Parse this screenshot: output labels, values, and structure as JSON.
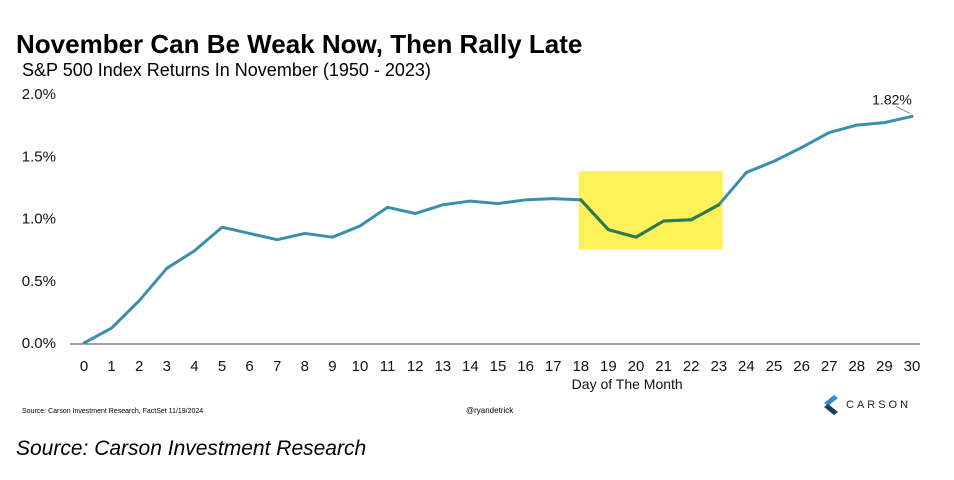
{
  "header": {
    "title": "November Can Be Weak Now, Then Rally Late",
    "subtitle": "S&P 500 Index Returns In November (1950 - 2023)"
  },
  "footer": {
    "source_small": "Source: Carson Investment Research, FactSet 11/19/2024",
    "handle": "@ryandetrick",
    "logo_text": "CARSON",
    "source_caption": "Source: Carson Investment Research"
  },
  "colors": {
    "line": "#3a8fad",
    "highlight_box": "#fef15a",
    "highlight_line": "#2e7a4a",
    "axis": "#444444",
    "logo_dark": "#1b3a6b",
    "logo_light": "#2a8fd6"
  },
  "chart_data": {
    "type": "line",
    "title": "November Can Be Weak Now, Then Rally Late",
    "subtitle": "S&P 500 Index Returns In November (1950 - 2023)",
    "xlabel": "Day of The Month",
    "ylabel": "",
    "x": [
      0,
      1,
      2,
      3,
      4,
      5,
      6,
      7,
      8,
      9,
      10,
      11,
      12,
      13,
      14,
      15,
      16,
      17,
      18,
      19,
      20,
      21,
      22,
      23,
      24,
      25,
      26,
      27,
      28,
      29,
      30
    ],
    "series": [
      {
        "values": [
          0.0,
          0.12,
          0.34,
          0.6,
          0.74,
          0.93,
          0.88,
          0.83,
          0.88,
          0.85,
          0.94,
          1.09,
          1.04,
          1.11,
          1.14,
          1.12,
          1.15,
          1.16,
          1.15,
          0.91,
          0.85,
          0.98,
          0.99,
          1.11,
          1.37,
          1.46,
          1.57,
          1.69,
          1.75,
          1.77,
          1.82
        ]
      }
    ],
    "ylim": [
      0,
      2.0
    ],
    "y_ticks": [
      "0.0%",
      "0.5%",
      "1.0%",
      "1.5%",
      "2.0%"
    ],
    "y_tick_values": [
      0,
      0.5,
      1.0,
      1.5,
      2.0
    ],
    "highlight": {
      "x_start": 18,
      "x_end": 23,
      "y_low": 0.75,
      "y_high": 1.38
    },
    "annotations": [
      {
        "x": 30,
        "y": 1.82,
        "text": "1.82%"
      }
    ],
    "grid": false,
    "legend": "none"
  }
}
